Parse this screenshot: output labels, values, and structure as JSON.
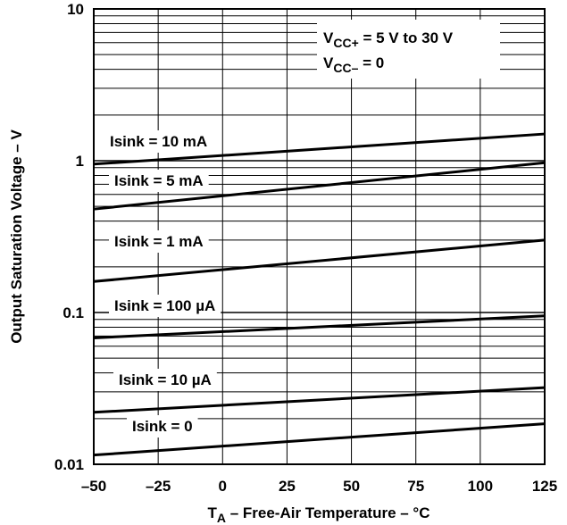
{
  "chart_data": {
    "type": "line",
    "xlabel": "T_A – Free-Air Temperature – °C",
    "xlabel_main": "T",
    "xlabel_sub": "A",
    "xlabel_rest": " – Free-Air Temperature – °C",
    "ylabel": "Output Saturation Voltage – V",
    "xlim": [
      -50,
      125
    ],
    "ylim": [
      0.01,
      10
    ],
    "yscale": "log",
    "grid": true,
    "x_ticks": [
      "–50",
      "–25",
      "0",
      "25",
      "50",
      "75",
      "100",
      "125"
    ],
    "x_tick_values": [
      -50,
      -25,
      0,
      25,
      50,
      75,
      100,
      125
    ],
    "y_ticks": [
      "0.01",
      "0.1",
      "1",
      "10"
    ],
    "y_tick_values": [
      0.01,
      0.1,
      1,
      10
    ],
    "annotation": {
      "line1_main": "V",
      "line1_sub": "CC+",
      "line1_rest": " = 5 V to 30 V",
      "line2_main": "V",
      "line2_sub": "CC–",
      "line2_rest": " = 0"
    },
    "series": [
      {
        "name": "Isink = 10 mA",
        "x": [
          -50,
          125
        ],
        "y": [
          0.95,
          1.5
        ]
      },
      {
        "name": "Isink = 5 mA",
        "x": [
          -50,
          125
        ],
        "y": [
          0.48,
          0.97
        ]
      },
      {
        "name": "Isink = 1 mA",
        "x": [
          -50,
          125
        ],
        "y": [
          0.16,
          0.3
        ]
      },
      {
        "name": "Isink = 100 µA",
        "x": [
          -50,
          125
        ],
        "y": [
          0.068,
          0.095
        ]
      },
      {
        "name": "Isink = 10 µA",
        "x": [
          -50,
          125
        ],
        "y": [
          0.022,
          0.032
        ]
      },
      {
        "name": "Isink = 0",
        "x": [
          -50,
          125
        ],
        "y": [
          0.0115,
          0.0185
        ]
      }
    ]
  }
}
